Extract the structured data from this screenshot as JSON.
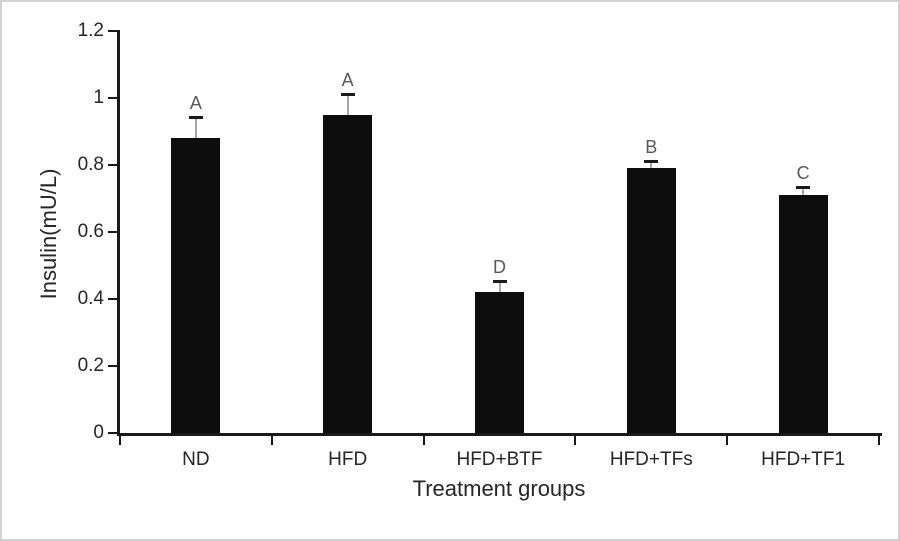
{
  "chart_data": {
    "type": "bar",
    "title": "",
    "xlabel": "Treatment groups",
    "ylabel": "Insulin(mU/L)",
    "categories": [
      "ND",
      "HFD",
      "HFD+BTF",
      "HFD+TFs",
      "HFD+TF1"
    ],
    "values": [
      0.88,
      0.95,
      0.42,
      0.79,
      0.71
    ],
    "error_upper": [
      0.06,
      0.06,
      0.03,
      0.02,
      0.02
    ],
    "bar_letters": [
      "A",
      "A",
      "D",
      "B",
      "C"
    ],
    "ylim": [
      0,
      1.2
    ],
    "ytick_step": 0.2,
    "ytick_labels": [
      "0",
      "0.2",
      "0.4",
      "0.6",
      "0.8",
      "1",
      "1.2"
    ],
    "grid": false,
    "legend": false,
    "colors": {
      "bar": "#0d0d0d",
      "axis": "#1a1a1a",
      "error_line": "#a6a6a6",
      "error_cap": "#1a1a1a",
      "letter": "#595959",
      "text": "#262626",
      "frame_border": "#d2d2d2",
      "background": "#ffffff"
    }
  }
}
